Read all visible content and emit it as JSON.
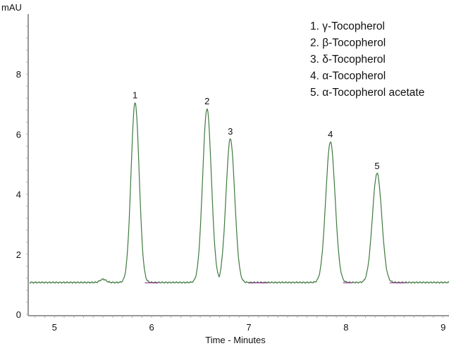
{
  "chart_data": {
    "type": "line",
    "title": "",
    "xlabel": "Time - Minutes",
    "ylabel": "mAU",
    "xlim": [
      4.73,
      9.06
    ],
    "ylim": [
      0,
      10
    ],
    "x_ticks": [
      "5",
      "6",
      "7",
      "8",
      "9"
    ],
    "y_ticks": [
      "0",
      "2",
      "4",
      "6",
      "8"
    ],
    "grid": false,
    "baseline": 1.06,
    "line_color": "#3f7a3f",
    "baseline_highlight_color": "#a040a0",
    "peaks": [
      {
        "label": "1",
        "time": 5.83,
        "height": 7.05,
        "width_min": 0.042
      },
      {
        "label": "2",
        "time": 6.57,
        "height": 6.85,
        "width_min": 0.045
      },
      {
        "label": "3",
        "time": 6.81,
        "height": 5.85,
        "width_min": 0.045
      },
      {
        "label": "4",
        "time": 7.84,
        "height": 5.75,
        "width_min": 0.048
      },
      {
        "label": "5",
        "time": 8.32,
        "height": 4.7,
        "width_min": 0.048
      }
    ],
    "minor_features": [
      {
        "time": 5.5,
        "height": 1.17
      }
    ],
    "legend_position": "top-right",
    "legend": [
      "1. γ-Tocopherol",
      "2. β-Tocopherol",
      "3. δ-Tocopherol",
      "4. α-Tocopherol",
      "5. α-Tocopherol acetate"
    ]
  }
}
